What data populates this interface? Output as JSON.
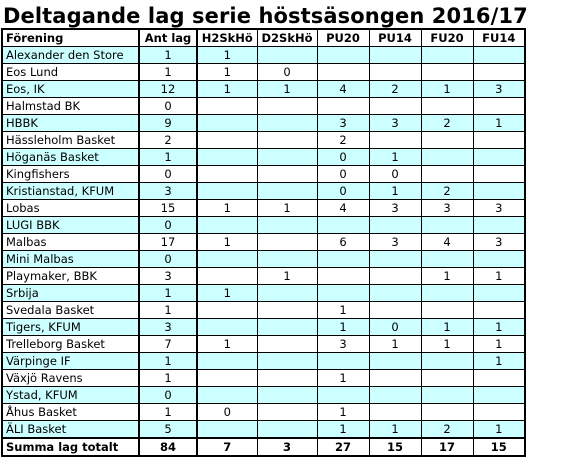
{
  "title": "Deltagande lag serie höstsäsongen 2016/17",
  "headers": [
    "Förening",
    "Ant lag",
    "H2SkHö",
    "D2SkHö",
    "PU20",
    "PU14",
    "FU20",
    "FU14"
  ],
  "rows": [
    {
      "name": "Alexander den Store",
      "cells": [
        "1",
        "1",
        "",
        "",
        "",
        "",
        ""
      ]
    },
    {
      "name": "Eos Lund",
      "cells": [
        "1",
        "1",
        "0",
        "",
        "",
        "",
        ""
      ]
    },
    {
      "name": "Eos, IK",
      "cells": [
        "12",
        "1",
        "1",
        "4",
        "2",
        "1",
        "3"
      ]
    },
    {
      "name": "Halmstad BK",
      "cells": [
        "0",
        "",
        "",
        "",
        "",
        "",
        ""
      ]
    },
    {
      "name": "HBBK",
      "cells": [
        "9",
        "",
        "",
        "3",
        "3",
        "2",
        "1"
      ]
    },
    {
      "name": "Hässleholm Basket",
      "cells": [
        "2",
        "",
        "",
        "2",
        "",
        "",
        ""
      ]
    },
    {
      "name": "Höganäs Basket",
      "cells": [
        "1",
        "",
        "",
        "0",
        "1",
        "",
        ""
      ]
    },
    {
      "name": "Kingfishers",
      "cells": [
        "0",
        "",
        "",
        "0",
        "0",
        "",
        ""
      ]
    },
    {
      "name": "Kristianstad, KFUM",
      "cells": [
        "3",
        "",
        "",
        "0",
        "1",
        "2",
        ""
      ]
    },
    {
      "name": "Lobas",
      "cells": [
        "15",
        "1",
        "1",
        "4",
        "3",
        "3",
        "3"
      ]
    },
    {
      "name": "LUGI BBK",
      "cells": [
        "0",
        "",
        "",
        "",
        "",
        "",
        ""
      ]
    },
    {
      "name": "Malbas",
      "cells": [
        "17",
        "1",
        "",
        "6",
        "3",
        "4",
        "3"
      ]
    },
    {
      "name": "Mini Malbas",
      "cells": [
        "0",
        "",
        "",
        "",
        "",
        "",
        ""
      ]
    },
    {
      "name": "Playmaker, BBK",
      "cells": [
        "3",
        "",
        "1",
        "",
        "",
        "1",
        "1"
      ]
    },
    {
      "name": "Srbija",
      "cells": [
        "1",
        "1",
        "",
        "",
        "",
        "",
        ""
      ]
    },
    {
      "name": "Svedala Basket",
      "cells": [
        "1",
        "",
        "",
        "1",
        "",
        "",
        ""
      ]
    },
    {
      "name": "Tigers, KFUM",
      "cells": [
        "3",
        "",
        "",
        "1",
        "0",
        "1",
        "1"
      ]
    },
    {
      "name": "Trelleborg Basket",
      "cells": [
        "7",
        "1",
        "",
        "3",
        "1",
        "1",
        "1"
      ]
    },
    {
      "name": "Värpinge IF",
      "cells": [
        "1",
        "",
        "",
        "",
        "",
        "",
        "1"
      ]
    },
    {
      "name": "Växjö Ravens",
      "cells": [
        "1",
        "",
        "",
        "1",
        "",
        "",
        ""
      ]
    },
    {
      "name": "Ystad, KFUM",
      "cells": [
        "0",
        "",
        "",
        "",
        "",
        "",
        ""
      ]
    },
    {
      "name": "Åhus Basket",
      "cells": [
        "1",
        "0",
        "",
        "1",
        "",
        "",
        ""
      ]
    },
    {
      "name": "ÄLI Basket",
      "cells": [
        "5",
        "",
        "",
        "1",
        "1",
        "2",
        "1"
      ]
    }
  ],
  "total": {
    "name": "Summa lag totalt",
    "cells": [
      "84",
      "7",
      "3",
      "27",
      "15",
      "17",
      "15"
    ]
  },
  "colors": {
    "row_alt": "#ccffff",
    "row_plain": "#ffffff",
    "border": "#000000"
  }
}
